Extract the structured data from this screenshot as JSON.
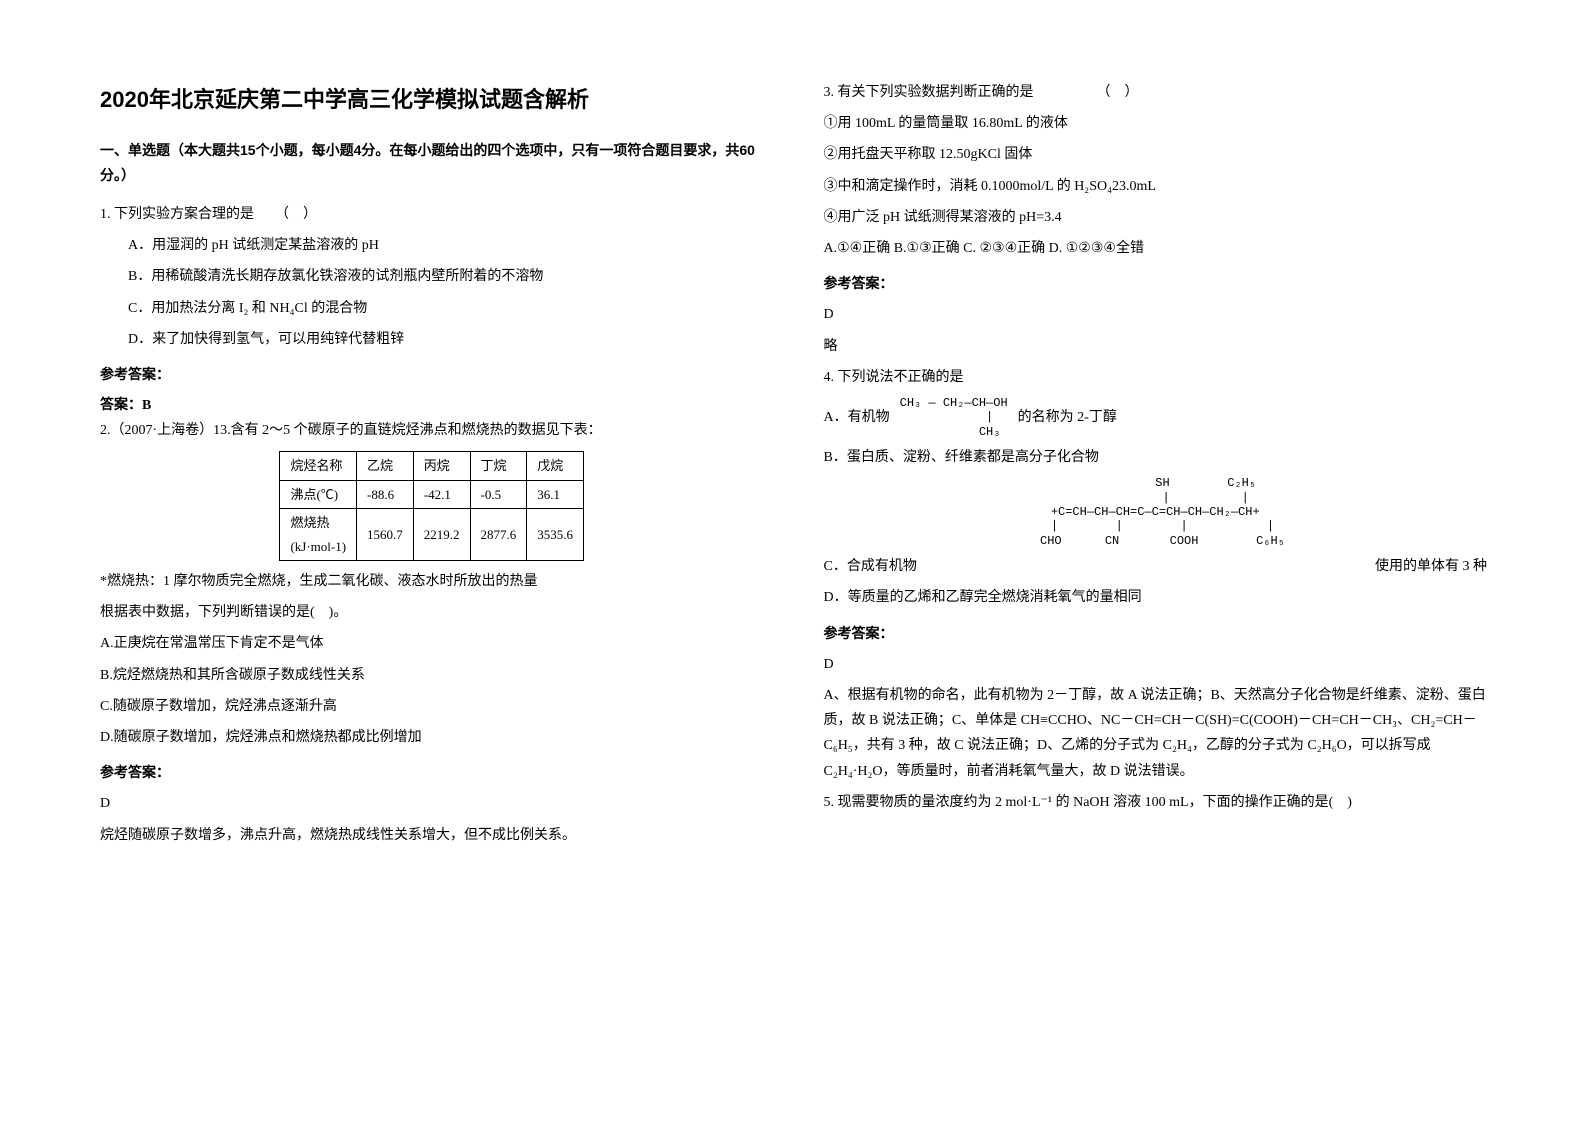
{
  "title": "2020年北京延庆第二中学高三化学模拟试题含解析",
  "section_intro": "一、单选题（本大题共15个小题，每小题4分。在每小题给出的四个选项中，只有一项符合题目要求，共60分。）",
  "left": {
    "q1": {
      "stem": "1. 下列实验方案合理的是　　（　）",
      "A": "A．用湿润的 pH 试纸测定某盐溶液的 pH",
      "B": "B．用稀硫酸清洗长期存放氯化铁溶液的试剂瓶内壁所附着的不溶物",
      "C": "C．用加热法分离 I₂ 和 NH₄Cl 的混合物",
      "D": "D．来了加快得到氢气，可以用纯锌代替粗锌",
      "ans_head": "参考答案：",
      "ans": "答案：B"
    },
    "q2": {
      "stem": "2.（2007·上海卷）13.含有 2～5 个碳原子的直链烷烃沸点和燃烧热的数据见下表：",
      "table": {
        "r1": [
          "烷烃名称",
          "乙烷",
          "丙烷",
          "丁烷",
          "戊烷"
        ],
        "r2": [
          "沸点(℃)",
          "-88.6",
          "-42.1",
          "-0.5",
          "36.1"
        ],
        "r3a": "燃烧热",
        "r3b": "(kJ·mol-1)",
        "r3": [
          "1560.7",
          "2219.2",
          "2877.6",
          "3535.6"
        ]
      },
      "note": "*燃烧热：1 摩尔物质完全燃烧，生成二氧化碳、液态水时所放出的热量",
      "ask": "根据表中数据，下列判断错误的是(　)。",
      "A": "A.正庚烷在常温常压下肯定不是气体",
      "B": "B.烷烃燃烧热和其所含碳原子数成线性关系",
      "C": "C.随碳原子数增加，烷烃沸点逐渐升高",
      "D": "D.随碳原子数增加，烷烃沸点和燃烧热都成比例增加",
      "ans_head": "参考答案：",
      "ans": "D",
      "expl": "烷烃随碳原子数增多，沸点升高，燃烧热成线性关系增大，但不成比例关系。"
    }
  },
  "right": {
    "q3": {
      "stem": "3. 有关下列实验数据判断正确的是　　　　　（　）",
      "l1": "①用 100mL 的量筒量取 16.80mL 的液体",
      "l2": "②用托盘天平称取 12.50gKCl 固体",
      "l3": "③中和滴定操作时，消耗 0.1000mol/L 的 H₂SO₄23.0mL",
      "l4": "④用广泛 pH 试纸测得某溶液的 pH=3.4",
      "opts": "A.①④正确  B.①③正确  C. ②③④正确  D. ①②③④全错",
      "ans_head": "参考答案：",
      "ans": "D",
      "omit": "略"
    },
    "q4": {
      "stem": "4. 下列说法不正确的是",
      "A_pre": "A．有机物",
      "A_struct": "CH₃ ― CH₂―CH―OH\n            |\n           CH₃",
      "A_post": "的名称为 2-丁醇",
      "B": "B．蛋白质、淀粉、纤维素都是高分子化合物",
      "C_pre": "C．合成有机物",
      "C_struct": "              SH        C₂H₅\n              |          |\n+C=CH—CH—CH=C—C=CH—CH—CH₂—CH+\n  |        |        |           |\n  CHO      CN       COOH        C₆H₅",
      "C_post": "使用的单体有 3 种",
      "D": "D．等质量的乙烯和乙醇完全燃烧消耗氧气的量相同",
      "ans_head": "参考答案：",
      "ans": "D",
      "expl": "A、根据有机物的命名，此有机物为 2－丁醇，故 A 说法正确；B、天然高分子化合物是纤维素、淀粉、蛋白质，故 B 说法正确；C、单体是 CH≡CCHO、NC－CH=CH－C(SH)=C(COOH)－CH=CH－CH₃、CH₂=CH－C₆H₅，共有 3 种，故 C 说法正确；D、乙烯的分子式为 C₂H₄，乙醇的分子式为 C₂H₆O，可以拆写成 C₂H₄·H₂O，等质量时，前者消耗氧气量大，故 D 说法错误。"
    },
    "q5": {
      "stem": "5. 现需要物质的量浓度约为 2 mol·L⁻¹ 的 NaOH 溶液 100 mL，下面的操作正确的是(　)"
    }
  }
}
